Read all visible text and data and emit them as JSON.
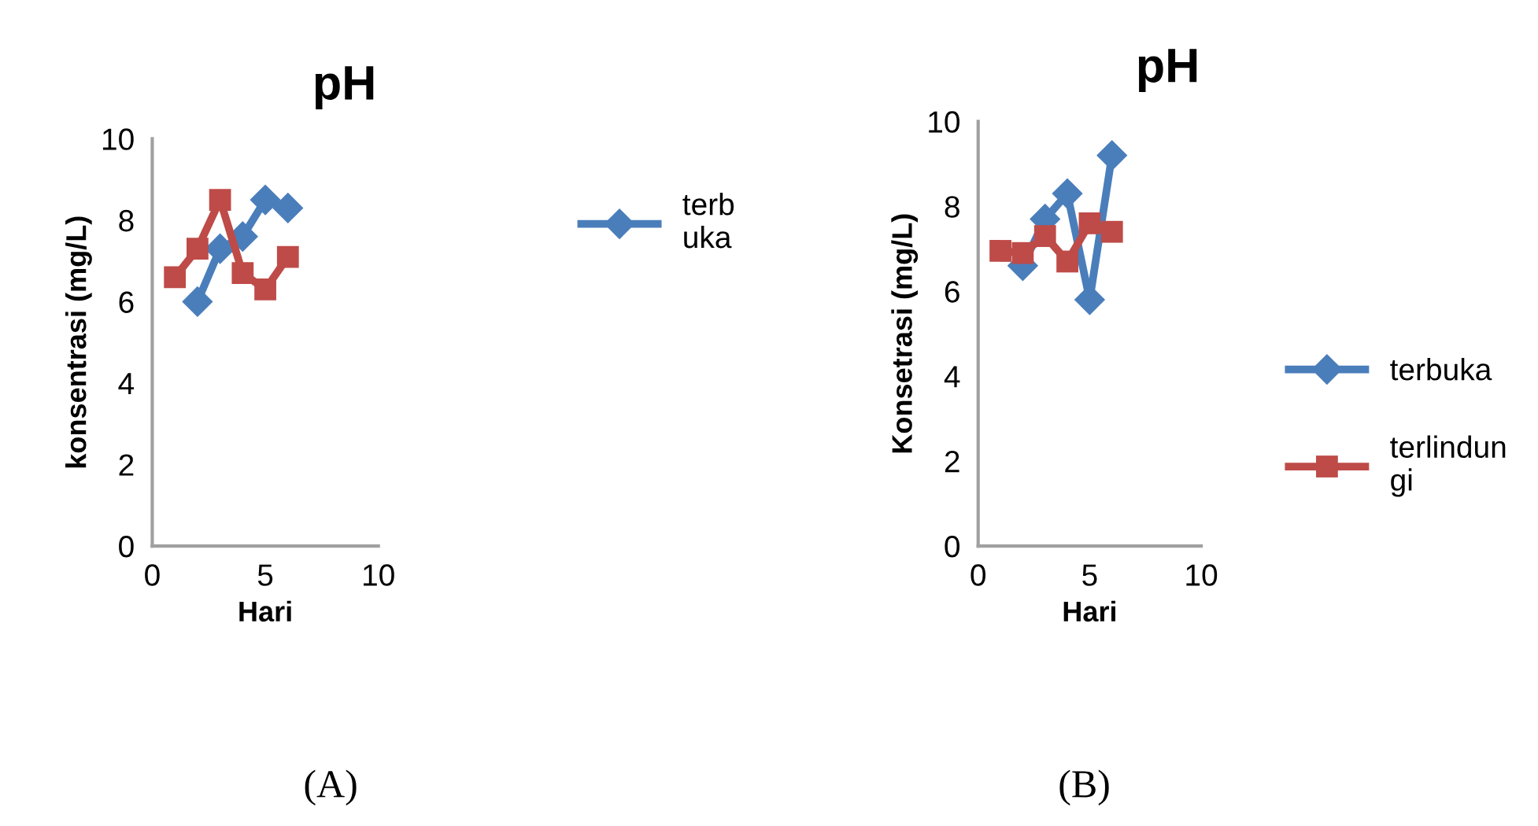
{
  "chart_data": [
    {
      "type": "line",
      "title": "pH",
      "xlabel": "Hari",
      "ylabel": "konsentrasi (mg/L)",
      "annotations": [
        "(A)"
      ],
      "x": [
        1,
        2,
        3,
        4,
        5,
        6
      ],
      "xlim": [
        0,
        10
      ],
      "xticks": [
        0,
        5,
        10
      ],
      "ylim": [
        0,
        10
      ],
      "yticks": [
        0,
        2,
        4,
        6,
        8,
        10
      ],
      "grid": false,
      "legend": "right",
      "line_style": "solid",
      "series": [
        {
          "name": "terb\nuka",
          "color": "#4a7ebb",
          "marker": "diamond",
          "values": [
            null,
            6.0,
            7.3,
            7.6,
            8.5,
            8.3
          ]
        },
        {
          "color": "#be4b48",
          "marker": "square",
          "values": [
            6.6,
            7.3,
            8.5,
            6.7,
            6.3,
            7.1
          ]
        }
      ]
    },
    {
      "type": "line",
      "title": "pH",
      "xlabel": "Hari",
      "ylabel": "Konsetrasi (mg/L)",
      "annotations": [
        "(B)"
      ],
      "x": [
        1,
        2,
        3,
        4,
        5,
        6
      ],
      "xlim": [
        0,
        10
      ],
      "xticks": [
        0,
        5,
        10
      ],
      "ylim": [
        0,
        10
      ],
      "yticks": [
        0,
        2,
        4,
        6,
        8,
        10
      ],
      "grid": false,
      "legend": "right",
      "line_style": "solid",
      "series": [
        {
          "name": "terbuka",
          "color": "#4a7ebb",
          "marker": "diamond",
          "values": [
            null,
            6.6,
            7.7,
            8.3,
            5.8,
            9.2
          ]
        },
        {
          "name": "terlindun\ngi",
          "color": "#be4b48",
          "marker": "square",
          "values": [
            6.95,
            6.9,
            7.3,
            6.7,
            7.6,
            7.4
          ]
        }
      ]
    }
  ]
}
